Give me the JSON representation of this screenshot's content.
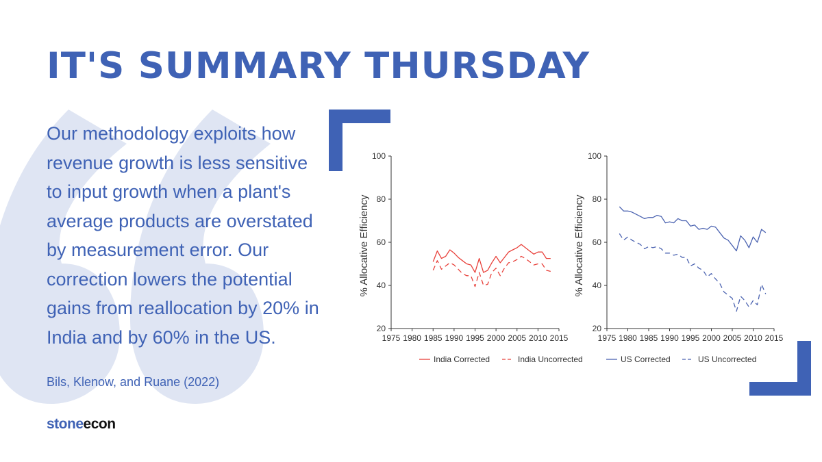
{
  "header": {
    "title": "IT'S SUMMARY THURSDAY"
  },
  "quote": {
    "text": "Our methodology exploits how revenue growth is less sensitive to input growth when a plant's average products are overstated by measurement error. Our correction lowers the potential gains from reallocation by 20% in India and by 60% in the US.",
    "citation": "Bils, Klenow, and Ruane (2022)"
  },
  "brand": {
    "part1": "stone",
    "part2": "econ"
  },
  "colors": {
    "accent": "#3f62b5",
    "india": "#e8403a",
    "us": "#4a62b0",
    "quote_mark": "#dfe5f3"
  },
  "chart_data": [
    {
      "type": "line",
      "title": "",
      "xlabel": "",
      "ylabel": "% Allocative Efficiency",
      "xlim": [
        1975,
        2015
      ],
      "ylim": [
        20,
        100
      ],
      "xticks": [
        1975,
        1980,
        1985,
        1990,
        1995,
        2000,
        2005,
        2010,
        2015
      ],
      "yticks": [
        20,
        40,
        60,
        80,
        100
      ],
      "legend_position": "bottom",
      "series": [
        {
          "name": "India Corrected",
          "style": "solid",
          "x": [
            1985,
            1986,
            1987,
            1988,
            1989,
            1990,
            1991,
            1992,
            1993,
            1994,
            1995,
            1996,
            1997,
            1998,
            1999,
            2000,
            2001,
            2002,
            2003,
            2004,
            2005,
            2006,
            2007,
            2008,
            2009,
            2010,
            2011,
            2012,
            2013
          ],
          "y": [
            51,
            56,
            52.5,
            53.5,
            56.5,
            55,
            53,
            51.5,
            50,
            49.5,
            46,
            52.5,
            46,
            47,
            50.5,
            53.5,
            50.5,
            53,
            55.5,
            56.5,
            57.5,
            59,
            57.5,
            56,
            54.5,
            55.5,
            55.5,
            52.5,
            52.5
          ]
        },
        {
          "name": "India Uncorrected",
          "style": "dashed",
          "x": [
            1985,
            1986,
            1987,
            1988,
            1989,
            1990,
            1991,
            1992,
            1993,
            1994,
            1995,
            1996,
            1997,
            1998,
            1999,
            2000,
            2001,
            2002,
            2003,
            2004,
            2005,
            2006,
            2007,
            2008,
            2009,
            2010,
            2011,
            2012,
            2013
          ],
          "y": [
            47,
            51.5,
            47.5,
            49,
            50.5,
            49.5,
            47.5,
            45.5,
            44.5,
            44.5,
            39.5,
            46,
            40,
            40.5,
            46,
            48,
            44.5,
            48,
            50.5,
            51,
            52,
            53.5,
            52.5,
            51,
            49.5,
            50,
            50,
            47,
            46.5
          ]
        }
      ]
    },
    {
      "type": "line",
      "title": "",
      "xlabel": "",
      "ylabel": "% Allocative Efficiency",
      "xlim": [
        1975,
        2015
      ],
      "ylim": [
        20,
        100
      ],
      "xticks": [
        1975,
        1980,
        1985,
        1990,
        1995,
        2000,
        2005,
        2010,
        2015
      ],
      "yticks": [
        20,
        40,
        60,
        80,
        100
      ],
      "legend_position": "bottom",
      "series": [
        {
          "name": "US Corrected",
          "style": "solid",
          "x": [
            1978,
            1979,
            1980,
            1981,
            1982,
            1983,
            1984,
            1985,
            1986,
            1987,
            1988,
            1989,
            1990,
            1991,
            1992,
            1993,
            1994,
            1995,
            1996,
            1997,
            1998,
            1999,
            2000,
            2001,
            2002,
            2003,
            2004,
            2005,
            2006,
            2007,
            2008,
            2009,
            2010,
            2011,
            2012,
            2013
          ],
          "y": [
            76.5,
            74.5,
            74.5,
            74,
            73,
            72,
            71,
            71.5,
            71.5,
            72.5,
            72,
            69,
            69.5,
            69,
            71,
            70,
            70,
            67.5,
            68,
            66,
            66.5,
            66,
            67.5,
            67,
            64.5,
            62,
            61,
            58.5,
            56,
            63,
            61,
            57.5,
            62.5,
            60,
            66,
            64.5
          ]
        },
        {
          "name": "US Uncorrected",
          "style": "dashed",
          "x": [
            1978,
            1979,
            1980,
            1981,
            1982,
            1983,
            1984,
            1985,
            1986,
            1987,
            1988,
            1989,
            1990,
            1991,
            1992,
            1993,
            1994,
            1995,
            1996,
            1997,
            1998,
            1999,
            2000,
            2001,
            2002,
            2003,
            2004,
            2005,
            2006,
            2007,
            2008,
            2009,
            2010,
            2011,
            2012,
            2013
          ],
          "y": [
            64,
            61,
            62.5,
            61,
            60,
            59,
            57,
            58,
            57.5,
            58,
            57,
            55,
            55,
            54,
            54.5,
            53,
            53,
            49,
            50,
            48,
            47,
            44,
            45.5,
            43,
            41,
            37,
            35.5,
            34,
            28,
            35,
            33,
            30,
            33,
            31,
            40.5,
            36
          ]
        }
      ]
    }
  ]
}
